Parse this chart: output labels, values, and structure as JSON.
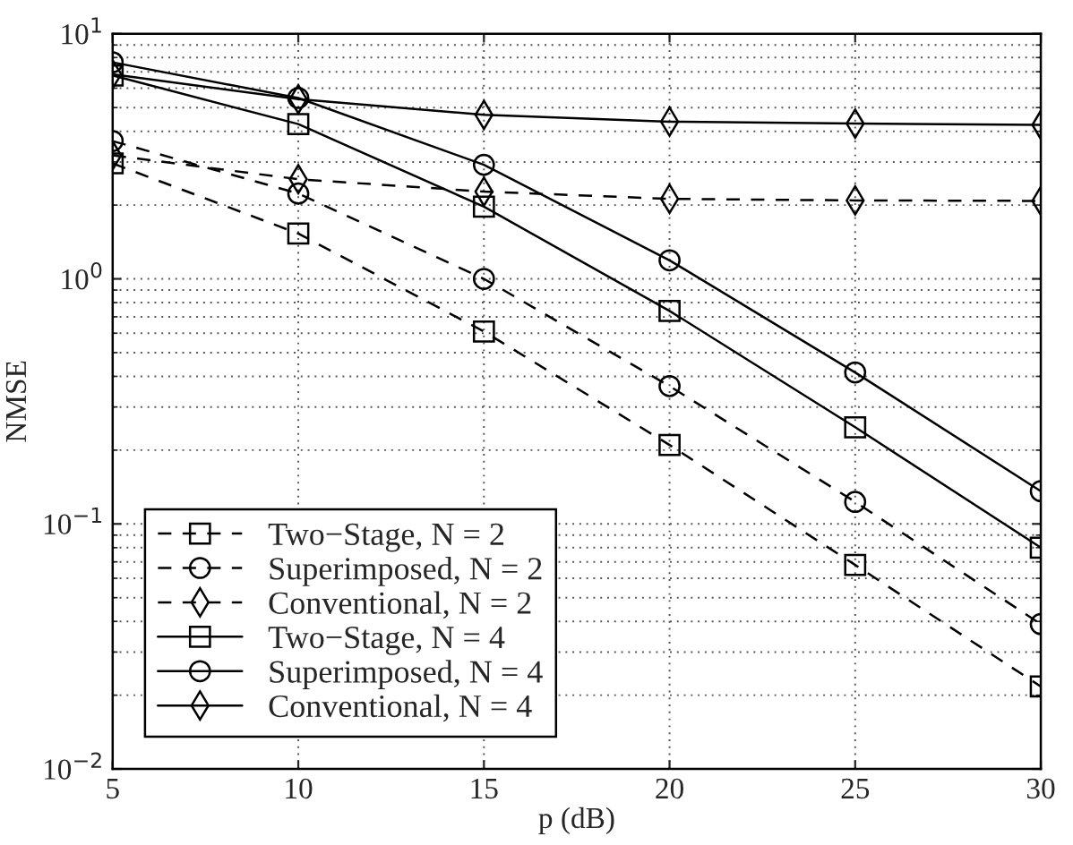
{
  "chart_data": {
    "type": "line",
    "xlabel": "p (dB)",
    "ylabel": "NMSE",
    "x": [
      5,
      10,
      15,
      20,
      25,
      30
    ],
    "log": "y",
    "grid": true,
    "legend": "bottom left",
    "xlim": [
      5,
      30
    ],
    "xticks": [
      5,
      10,
      15,
      20,
      25,
      30
    ],
    "ylim": [
      0.01,
      10
    ],
    "yticks": [
      {
        "value": 0.01,
        "label": "10$^{−2}$"
      },
      {
        "value": 0.1,
        "label": "10$^{−1}$"
      },
      {
        "value": 1,
        "label": "10$^{0}$"
      },
      {
        "value": 10,
        "label": "10$^{1}$"
      }
    ],
    "series": [
      {
        "name": "Two−Stage, N = 2",
        "color": "#000000",
        "marker": "square",
        "line_style": "dashed",
        "values": [
          2.96,
          1.53,
          0.61,
          0.21,
          0.068,
          0.0217
        ]
      },
      {
        "name": "Superimposed, N = 2",
        "color": "#000000",
        "marker": "circle",
        "line_style": "dashed",
        "values": [
          3.65,
          2.23,
          1.0,
          0.365,
          0.123,
          0.039
        ]
      },
      {
        "name": "Conventional, N = 2",
        "color": "#000000",
        "marker": "diamond",
        "line_style": "dashed",
        "values": [
          3.19,
          2.55,
          2.27,
          2.12,
          2.09,
          2.08
        ]
      },
      {
        "name": "Two−Stage, N = 4",
        "color": "#000000",
        "marker": "square",
        "line_style": "solid",
        "values": [
          6.76,
          4.28,
          1.97,
          0.74,
          0.248,
          0.08
        ]
      },
      {
        "name": "Superimposed, N = 4",
        "color": "#000000",
        "marker": "circle",
        "line_style": "solid",
        "values": [
          7.65,
          5.47,
          2.92,
          1.19,
          0.415,
          0.136
        ]
      },
      {
        "name": "Conventional, N = 4",
        "color": "#000000",
        "marker": "diamond",
        "line_style": "solid",
        "values": [
          6.84,
          5.41,
          4.67,
          4.38,
          4.3,
          4.25
        ]
      }
    ]
  }
}
